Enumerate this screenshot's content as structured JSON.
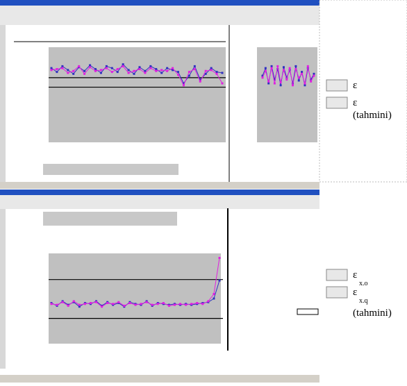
{
  "top_chart": {
    "ylim": [
      0,
      1
    ],
    "ref_lines": [
      0.68,
      0.58
    ],
    "series": [
      {
        "color": "#3030c0",
        "values": [
          0.78,
          0.74,
          0.8,
          0.76,
          0.72,
          0.79,
          0.75,
          0.81,
          0.77,
          0.73,
          0.8,
          0.78,
          0.74,
          0.82,
          0.76,
          0.72,
          0.79,
          0.75,
          0.8,
          0.77,
          0.73,
          0.78,
          0.76,
          0.74,
          0.62,
          0.7,
          0.8,
          0.66,
          0.72,
          0.78,
          0.74,
          0.73
        ]
      },
      {
        "color": "#e020e0",
        "values": [
          0.76,
          0.77,
          0.78,
          0.73,
          0.75,
          0.8,
          0.72,
          0.79,
          0.75,
          0.76,
          0.78,
          0.74,
          0.77,
          0.8,
          0.73,
          0.75,
          0.77,
          0.73,
          0.78,
          0.75,
          0.76,
          0.75,
          0.78,
          0.71,
          0.6,
          0.74,
          0.77,
          0.64,
          0.75,
          0.76,
          0.72,
          0.62
        ]
      }
    ]
  },
  "side_chart": {
    "ylim": [
      0,
      1
    ],
    "series": [
      {
        "color": "#3030c0",
        "values": [
          0.7,
          0.78,
          0.62,
          0.8,
          0.66,
          0.77,
          0.6,
          0.79,
          0.68,
          0.76,
          0.62,
          0.8,
          0.65,
          0.74,
          0.6,
          0.78,
          0.66,
          0.72
        ]
      },
      {
        "color": "#e020e0",
        "values": [
          0.68,
          0.75,
          0.64,
          0.78,
          0.62,
          0.8,
          0.63,
          0.76,
          0.66,
          0.78,
          0.6,
          0.77,
          0.68,
          0.72,
          0.62,
          0.8,
          0.64,
          0.7
        ]
      }
    ]
  },
  "bottom_chart": {
    "ylim": [
      0,
      1
    ],
    "ref_lines": [
      0.71,
      0.28
    ],
    "series": [
      {
        "color": "#3030c0",
        "values": [
          0.45,
          0.42,
          0.47,
          0.43,
          0.46,
          0.41,
          0.45,
          0.44,
          0.47,
          0.42,
          0.46,
          0.43,
          0.45,
          0.41,
          0.46,
          0.44,
          0.43,
          0.47,
          0.42,
          0.45,
          0.44,
          0.43,
          0.44,
          0.43,
          0.44,
          0.43,
          0.44,
          0.45,
          0.46,
          0.5,
          0.7
        ]
      },
      {
        "color": "#e020e0",
        "values": [
          0.44,
          0.43,
          0.46,
          0.42,
          0.47,
          0.43,
          0.44,
          0.45,
          0.46,
          0.41,
          0.45,
          0.44,
          0.46,
          0.42,
          0.45,
          0.43,
          0.44,
          0.46,
          0.43,
          0.44,
          0.45,
          0.42,
          0.43,
          0.44,
          0.43,
          0.44,
          0.45,
          0.44,
          0.47,
          0.55,
          0.95
        ]
      }
    ]
  },
  "top_legend": [
    {
      "symbol": "ε"
    },
    {
      "symbol": "ε",
      "note": "(tahmini)"
    }
  ],
  "bottom_legend": [
    {
      "symbol": "ε",
      "subscript": "x.o"
    },
    {
      "symbol": "ε",
      "subscript": "x.q",
      "note": "(tahmini)"
    }
  ]
}
